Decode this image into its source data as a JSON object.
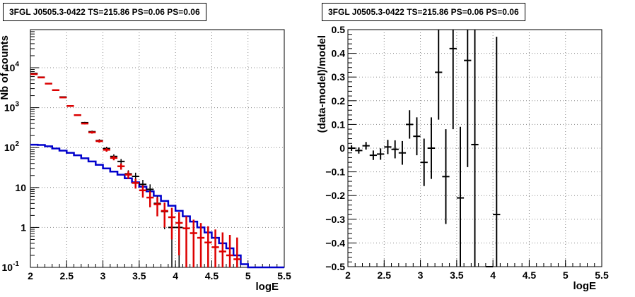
{
  "chart_data": [
    {
      "type": "histogram",
      "title": "3FGL J0505.3-0422 TS=215.86 PS=0.06 PS=0.06",
      "xlabel": "logE",
      "ylabel": "Nb of counts",
      "xlim": [
        2,
        5.5
      ],
      "ylim": [
        0.1,
        90000
      ],
      "yscale": "log",
      "grid": true,
      "x_ticks": [
        "2",
        "2.5",
        "3",
        "3.5",
        "4",
        "4.5",
        "5",
        "5.5"
      ],
      "y_ticks": [
        {
          "value": 0.1,
          "label": "10^-1"
        },
        {
          "value": 1,
          "label": "1"
        },
        {
          "value": 10,
          "label": "10"
        },
        {
          "value": 100,
          "label": "10^2"
        },
        {
          "value": 1000,
          "label": "10^3"
        },
        {
          "value": 10000,
          "label": "10^4"
        }
      ],
      "series": [
        {
          "color": "#000000",
          "kind": "points-with-errors",
          "points": [
            {
              "x": 2.05,
              "y": 7200,
              "err": 85
            },
            {
              "x": 2.15,
              "y": 5800,
              "err": 76
            },
            {
              "x": 2.25,
              "y": 4000,
              "err": 63
            },
            {
              "x": 2.35,
              "y": 2750,
              "err": 52
            },
            {
              "x": 2.45,
              "y": 1850,
              "err": 43
            },
            {
              "x": 2.55,
              "y": 1100,
              "err": 33
            },
            {
              "x": 2.65,
              "y": 650,
              "err": 25
            },
            {
              "x": 2.75,
              "y": 420,
              "err": 20
            },
            {
              "x": 2.85,
              "y": 250,
              "err": 16
            },
            {
              "x": 2.95,
              "y": 150,
              "err": 12
            },
            {
              "x": 3.05,
              "y": 95,
              "err": 10
            },
            {
              "x": 3.15,
              "y": 60,
              "err": 8
            },
            {
              "x": 3.25,
              "y": 45,
              "err": 7
            },
            {
              "x": 3.35,
              "y": 22,
              "err": 5
            },
            {
              "x": 3.45,
              "y": 19,
              "err": 4.5
            },
            {
              "x": 3.55,
              "y": 12,
              "err": 3.5
            },
            {
              "x": 3.65,
              "y": 9,
              "err": 3
            },
            {
              "x": 3.75,
              "y": 4,
              "err": 2
            },
            {
              "x": 3.85,
              "y": 2.5,
              "err": 1.6
            },
            {
              "x": 3.95,
              "y": 1,
              "err": 1
            },
            {
              "x": 4.05,
              "y": 1,
              "err": 1
            }
          ]
        },
        {
          "color": "#dd0000",
          "kind": "model-with-errors",
          "points": [
            {
              "x": 2.05,
              "y": 6900,
              "err": 83
            },
            {
              "x": 2.15,
              "y": 5700,
              "err": 75
            },
            {
              "x": 2.25,
              "y": 4000,
              "err": 63
            },
            {
              "x": 2.35,
              "y": 2750,
              "err": 52
            },
            {
              "x": 2.45,
              "y": 1800,
              "err": 42
            },
            {
              "x": 2.55,
              "y": 1100,
              "err": 33
            },
            {
              "x": 2.65,
              "y": 650,
              "err": 25
            },
            {
              "x": 2.75,
              "y": 400,
              "err": 20
            },
            {
              "x": 2.85,
              "y": 240,
              "err": 16
            },
            {
              "x": 2.95,
              "y": 145,
              "err": 12
            },
            {
              "x": 3.05,
              "y": 88,
              "err": 9
            },
            {
              "x": 3.15,
              "y": 55,
              "err": 7
            },
            {
              "x": 3.25,
              "y": 34,
              "err": 6
            },
            {
              "x": 3.35,
              "y": 21,
              "err": 4.5
            },
            {
              "x": 3.45,
              "y": 13,
              "err": 3.6
            },
            {
              "x": 3.55,
              "y": 8.5,
              "err": 2.9
            },
            {
              "x": 3.65,
              "y": 5.6,
              "err": 2.4
            },
            {
              "x": 3.75,
              "y": 3.8,
              "err": 1.9
            },
            {
              "x": 3.85,
              "y": 2.6,
              "err": 1.6
            },
            {
              "x": 3.95,
              "y": 1.8,
              "err": 1.3
            },
            {
              "x": 4.05,
              "y": 1.3,
              "err": 1.1
            },
            {
              "x": 4.15,
              "y": 0.95,
              "err": 0.95
            },
            {
              "x": 4.25,
              "y": 0.72,
              "err": 0.85
            },
            {
              "x": 4.35,
              "y": 0.55,
              "err": 0.74
            },
            {
              "x": 4.45,
              "y": 0.42,
              "err": 0.65
            },
            {
              "x": 4.55,
              "y": 0.32,
              "err": 0.57
            },
            {
              "x": 4.65,
              "y": 0.25,
              "err": 0.5
            },
            {
              "x": 4.75,
              "y": 0.2,
              "err": 0.45
            },
            {
              "x": 4.85,
              "y": 0.16,
              "err": 0.4
            }
          ]
        },
        {
          "color": "#0000cc",
          "kind": "step",
          "bin_width": 0.1,
          "x_start": 2.0,
          "values": [
            118,
            116,
            108,
            95,
            84,
            74,
            64,
            54,
            45,
            37,
            30,
            25,
            21,
            17,
            13.5,
            10.5,
            8,
            6.2,
            4.6,
            3.5,
            2.6,
            1.9,
            1.4,
            1.0,
            0.75,
            0.55,
            0.4,
            0.3,
            0.2,
            0.12,
            0.1,
            0.1,
            0.1,
            0.1,
            0.1
          ]
        }
      ]
    },
    {
      "type": "scatter",
      "title": "3FGL J0505.3-0422 TS=215.86 PS=0.06 PS=0.06",
      "xlabel": "logE",
      "ylabel": "(data-model)/model",
      "xlim": [
        2,
        5.5
      ],
      "ylim": [
        -0.5,
        0.5
      ],
      "grid": true,
      "x_ticks": [
        "2",
        "2.5",
        "3",
        "3.5",
        "4",
        "4.5",
        "5",
        "5.5"
      ],
      "y_ticks": [
        "-0.5",
        "-0.4",
        "-0.3",
        "-0.2",
        "-0.1",
        "0",
        "0.1",
        "0.2",
        "0.3",
        "0.4",
        "0.5"
      ],
      "series": [
        {
          "color": "#000000",
          "points": [
            {
              "x": 2.05,
              "y": 0.0,
              "err": 0.012
            },
            {
              "x": 2.15,
              "y": -0.01,
              "err": 0.013
            },
            {
              "x": 2.25,
              "y": 0.01,
              "err": 0.016
            },
            {
              "x": 2.35,
              "y": -0.03,
              "err": 0.02
            },
            {
              "x": 2.45,
              "y": -0.025,
              "err": 0.024
            },
            {
              "x": 2.55,
              "y": 0.005,
              "err": 0.03
            },
            {
              "x": 2.65,
              "y": -0.005,
              "err": 0.038
            },
            {
              "x": 2.75,
              "y": -0.02,
              "err": 0.05
            },
            {
              "x": 2.85,
              "y": 0.1,
              "err": 0.06
            },
            {
              "x": 2.95,
              "y": 0.05,
              "err": 0.08
            },
            {
              "x": 3.05,
              "y": -0.06,
              "err": 0.1
            },
            {
              "x": 3.15,
              "y": 0.0,
              "err": 0.13
            },
            {
              "x": 3.25,
              "y": 0.32,
              "err": 0.2
            },
            {
              "x": 3.35,
              "y": -0.12,
              "err": 0.2
            },
            {
              "x": 3.45,
              "y": 0.42,
              "err": 0.34
            },
            {
              "x": 3.55,
              "y": -0.21,
              "err": 0.3
            },
            {
              "x": 3.65,
              "y": 0.37,
              "err": 0.45
            },
            {
              "x": 3.75,
              "y": 0.015,
              "err": 0.6
            },
            {
              "x": 3.95,
              "y": -0.5,
              "err": 0.0
            },
            {
              "x": 4.05,
              "y": -0.28,
              "err": 0.75
            }
          ]
        }
      ]
    }
  ]
}
